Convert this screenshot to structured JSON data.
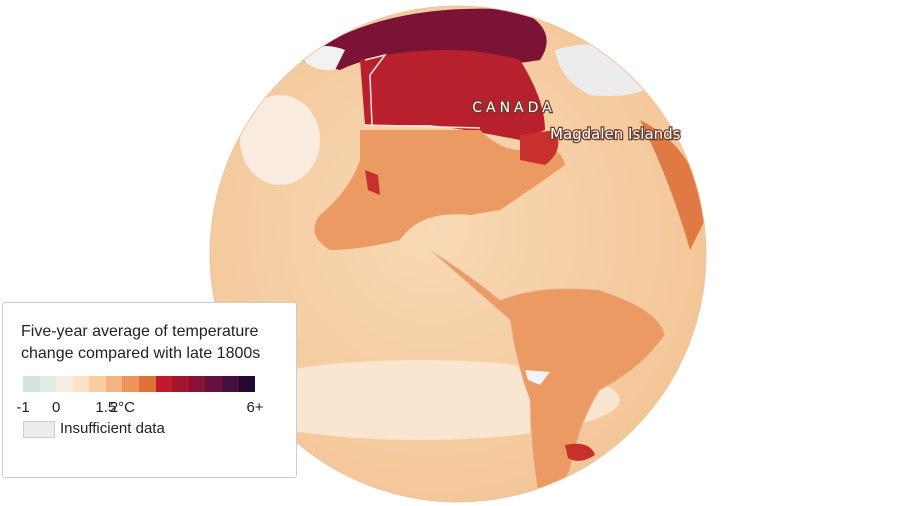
{
  "map": {
    "labels": {
      "country": "CANADA",
      "place": "Magdalen Islands"
    },
    "legend": {
      "title": "Five-year average of temperature change compared with late 1800s",
      "range": [
        -1,
        6
      ],
      "colors": [
        "#d3e4df",
        "#e4ece8",
        "#f7eee3",
        "#fbe3c8",
        "#f8cfa3",
        "#f4b47f",
        "#ec965a",
        "#e0703a",
        "#c01a2b",
        "#a5152f",
        "#881337",
        "#66123f",
        "#45103e",
        "#250a2f"
      ],
      "ticks": [
        -1,
        0,
        1.5,
        {
          "value": 2,
          "label": "2°C"
        },
        {
          "value": 6,
          "label": "6+"
        }
      ],
      "insufficient_label": "Insufficient data"
    }
  }
}
